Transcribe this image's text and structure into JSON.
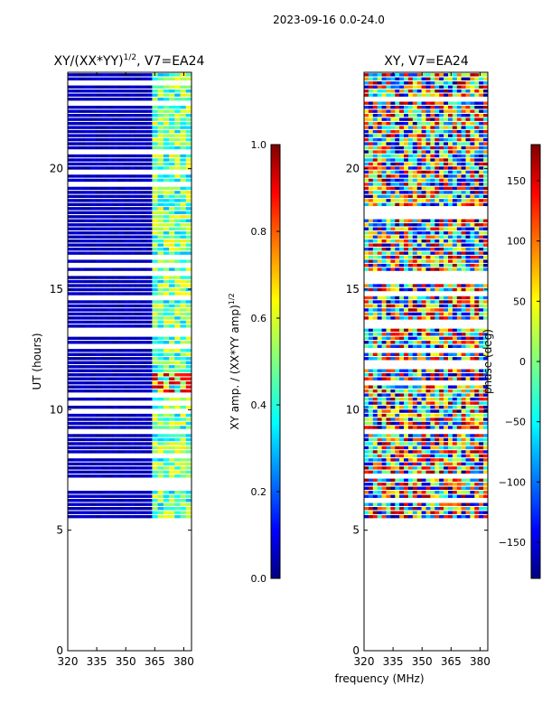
{
  "figure_title": "2023-09-16 0.0-24.0",
  "colors": {
    "background": "#ffffff",
    "axis": "#000000",
    "jet": [
      "#00007f",
      "#0000ff",
      "#007fff",
      "#00ffff",
      "#7fff7f",
      "#ffff00",
      "#ff7f00",
      "#ff0000",
      "#7f0000"
    ]
  },
  "chart_data": [
    {
      "type": "heatmap",
      "title": "XY/(XX*YY)^(1/2), V7=EA24",
      "title_main": "XY/(XX*YY)",
      "title_sup": "1/2",
      "title_tail": ", V7=EA24",
      "xlabel": "",
      "ylabel": "UT (hours)",
      "xlim": [
        320,
        384
      ],
      "ylim": [
        0,
        24
      ],
      "xticks": [
        320,
        335,
        350,
        365,
        380
      ],
      "yticks": [
        0,
        5,
        10,
        15,
        20
      ],
      "data_time_range": [
        5.5,
        24
      ],
      "active_freq_range": [
        361,
        384
      ],
      "colorbar": {
        "label": "XY amp. / (XX*YY amp)^(1/2)",
        "label_main": "XY amp. / (XX*YY amp)",
        "label_sup": "1/2",
        "range": [
          0.0,
          1.0
        ],
        "ticks": [
          0.0,
          0.2,
          0.4,
          0.6,
          0.8,
          1.0
        ],
        "tick_labels": [
          "0.0",
          "0.2",
          "0.4",
          "0.6",
          "0.8",
          "1.0"
        ]
      }
    },
    {
      "type": "heatmap",
      "title": "XY, V7=EA24",
      "xlabel": "frequency (MHz)",
      "ylabel": "",
      "xlim": [
        320,
        384
      ],
      "ylim": [
        0,
        24
      ],
      "xticks": [
        320,
        335,
        350,
        365,
        380
      ],
      "yticks": [
        0,
        5,
        10,
        15,
        20
      ],
      "data_time_range": [
        5.5,
        24
      ],
      "colorbar": {
        "label": "phase (deg)",
        "range": [
          -180,
          180
        ],
        "ticks": [
          -150,
          -100,
          -50,
          0,
          50,
          100,
          150
        ],
        "tick_labels": [
          "−150",
          "−100",
          "−50",
          "0",
          "50",
          "100",
          "150"
        ]
      }
    }
  ]
}
